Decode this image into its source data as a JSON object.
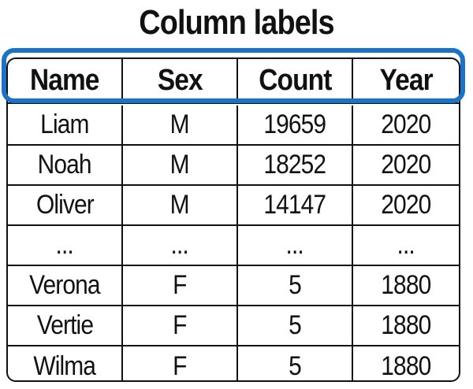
{
  "title": "Column labels",
  "accent_color": "#1a73c7",
  "table": {
    "columns": [
      "Name",
      "Sex",
      "Count",
      "Year"
    ],
    "rows": [
      [
        "Liam",
        "M",
        "19659",
        "2020"
      ],
      [
        "Noah",
        "M",
        "18252",
        "2020"
      ],
      [
        "Oliver",
        "M",
        "14147",
        "2020"
      ],
      [
        "...",
        "...",
        "...",
        "..."
      ],
      [
        "Verona",
        "F",
        "5",
        "1880"
      ],
      [
        "Vertie",
        "F",
        "5",
        "1880"
      ],
      [
        "Wilma",
        "F",
        "5",
        "1880"
      ]
    ]
  }
}
